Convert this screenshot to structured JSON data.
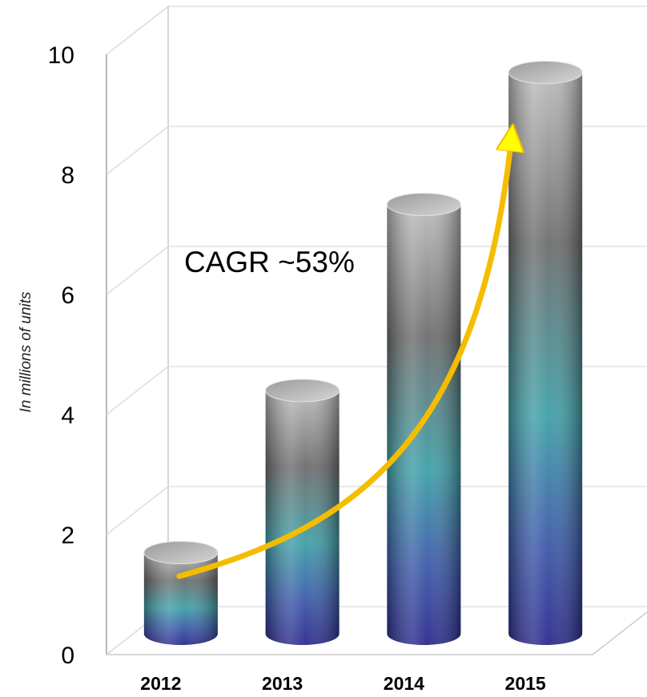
{
  "chart_data": {
    "type": "bar",
    "categories": [
      "2012",
      "2013",
      "2014",
      "2015"
    ],
    "values": [
      1.7,
      4.4,
      7.5,
      9.7
    ],
    "ylabel": "In millions of units",
    "xlabel": "",
    "ylim": [
      0,
      10
    ],
    "yticks": [
      "0",
      "2",
      "4",
      "6",
      "8",
      "10"
    ],
    "grid": true,
    "bar_style": "3d-cylinder",
    "colors": {
      "gradient_top": "#a8a8a8",
      "gradient_mid_dark": "#5f5f5f",
      "gradient_teal": "#3fa0a8",
      "gradient_blue": "#3c5aa8",
      "gradient_base": "#2b2a8c",
      "grid": "#d9d9d9",
      "arrow": "#f5bd00",
      "arrow_head": "#ffff00"
    },
    "annotation": {
      "text": "CAGR ~53%"
    }
  }
}
